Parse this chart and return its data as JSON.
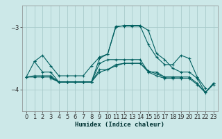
{
  "title": "",
  "xlabel": "Humidex (Indice chaleur)",
  "bg_color": "#cce8e8",
  "grid_color": "#aacccc",
  "line_color": "#005f5f",
  "xlim": [
    -0.5,
    23.5
  ],
  "ylim": [
    -4.35,
    -2.65
  ],
  "yticks": [
    -4,
    -3
  ],
  "xticks": [
    0,
    1,
    2,
    3,
    4,
    5,
    6,
    7,
    8,
    9,
    10,
    11,
    12,
    13,
    14,
    15,
    16,
    17,
    18,
    19,
    20,
    21,
    22,
    23
  ],
  "series": [
    [
      null,
      -3.55,
      -3.45,
      -3.62,
      -3.78,
      -3.78,
      -3.78,
      -3.78,
      -3.62,
      -3.48,
      -3.43,
      -2.98,
      -2.98,
      -2.98,
      -2.98,
      -3.28,
      -3.48,
      -3.6,
      -3.6,
      -3.45,
      -3.5,
      -3.8,
      -3.98,
      null
    ],
    [
      -3.8,
      -3.78,
      -3.78,
      -3.78,
      -3.88,
      -3.88,
      -3.88,
      -3.88,
      -3.88,
      -3.68,
      -3.68,
      -3.6,
      -3.58,
      -3.58,
      -3.58,
      -3.7,
      -3.75,
      -3.8,
      -3.8,
      -3.8,
      -3.8,
      -3.9,
      -4.05,
      -3.92
    ],
    [
      -3.8,
      -3.55,
      -3.72,
      -3.72,
      -3.88,
      -3.88,
      -3.88,
      -3.88,
      -3.88,
      -3.5,
      -3.43,
      -3.0,
      -2.97,
      -2.97,
      -2.97,
      -3.05,
      -3.42,
      -3.52,
      -3.66,
      -3.72,
      -3.72,
      -3.82,
      -4.05,
      -3.9
    ],
    [
      -3.8,
      -3.8,
      -3.8,
      -3.8,
      -3.88,
      -3.88,
      -3.88,
      -3.88,
      -3.88,
      -3.72,
      -3.68,
      -3.62,
      -3.58,
      -3.58,
      -3.58,
      -3.72,
      -3.78,
      -3.82,
      -3.82,
      -3.82,
      -3.82,
      -3.92,
      -4.05,
      -3.9
    ],
    [
      null,
      null,
      null,
      -3.82,
      -3.88,
      -3.88,
      -3.88,
      -3.88,
      -3.88,
      -3.58,
      -3.52,
      -3.52,
      -3.52,
      -3.52,
      -3.52,
      -3.72,
      -3.72,
      -3.8,
      -3.8,
      -3.8,
      null,
      null,
      null,
      null
    ]
  ]
}
